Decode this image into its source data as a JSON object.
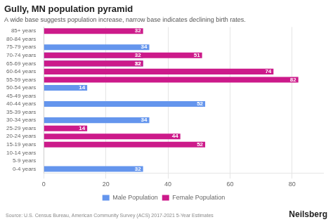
{
  "chart_data": {
    "type": "bar",
    "orientation": "horizontal",
    "title": "Gully, MN population pyramid",
    "subtitle": "A wide base suggests population increase, narrow base indicates declining birth rates.",
    "annotations": [
      "Source: U.S. Census Bureau, American Community Survey (ACS) 2017-2021 5-Year Estimates",
      "Neilsberg"
    ],
    "categories": [
      "85+ years",
      "80-84 years",
      "75-79 years",
      "70-74 years",
      "65-69 years",
      "60-64 years",
      "55-59 years",
      "50-54 years",
      "45-49 years",
      "40-44 years",
      "35-39 years",
      "30-34 years",
      "25-29 years",
      "20-24 years",
      "15-19 years",
      "10-14 years",
      "5-9 years",
      "0-4 years"
    ],
    "series": [
      {
        "name": "Male Population",
        "color": "#6495ed",
        "values": [
          0,
          0,
          34,
          32,
          32,
          0,
          0,
          14,
          0,
          52,
          0,
          34,
          0,
          0,
          0,
          0,
          0,
          32
        ]
      },
      {
        "name": "Female Population",
        "color": "#cc1a8a",
        "values": [
          32,
          0,
          0,
          51,
          32,
          74,
          82,
          0,
          0,
          0,
          0,
          0,
          14,
          44,
          52,
          0,
          0,
          0
        ]
      }
    ],
    "xlim": [
      0,
      90
    ],
    "xticks": [
      0,
      20,
      40,
      60,
      80
    ],
    "grid": true,
    "legend": "bottom",
    "data_labels": true
  }
}
